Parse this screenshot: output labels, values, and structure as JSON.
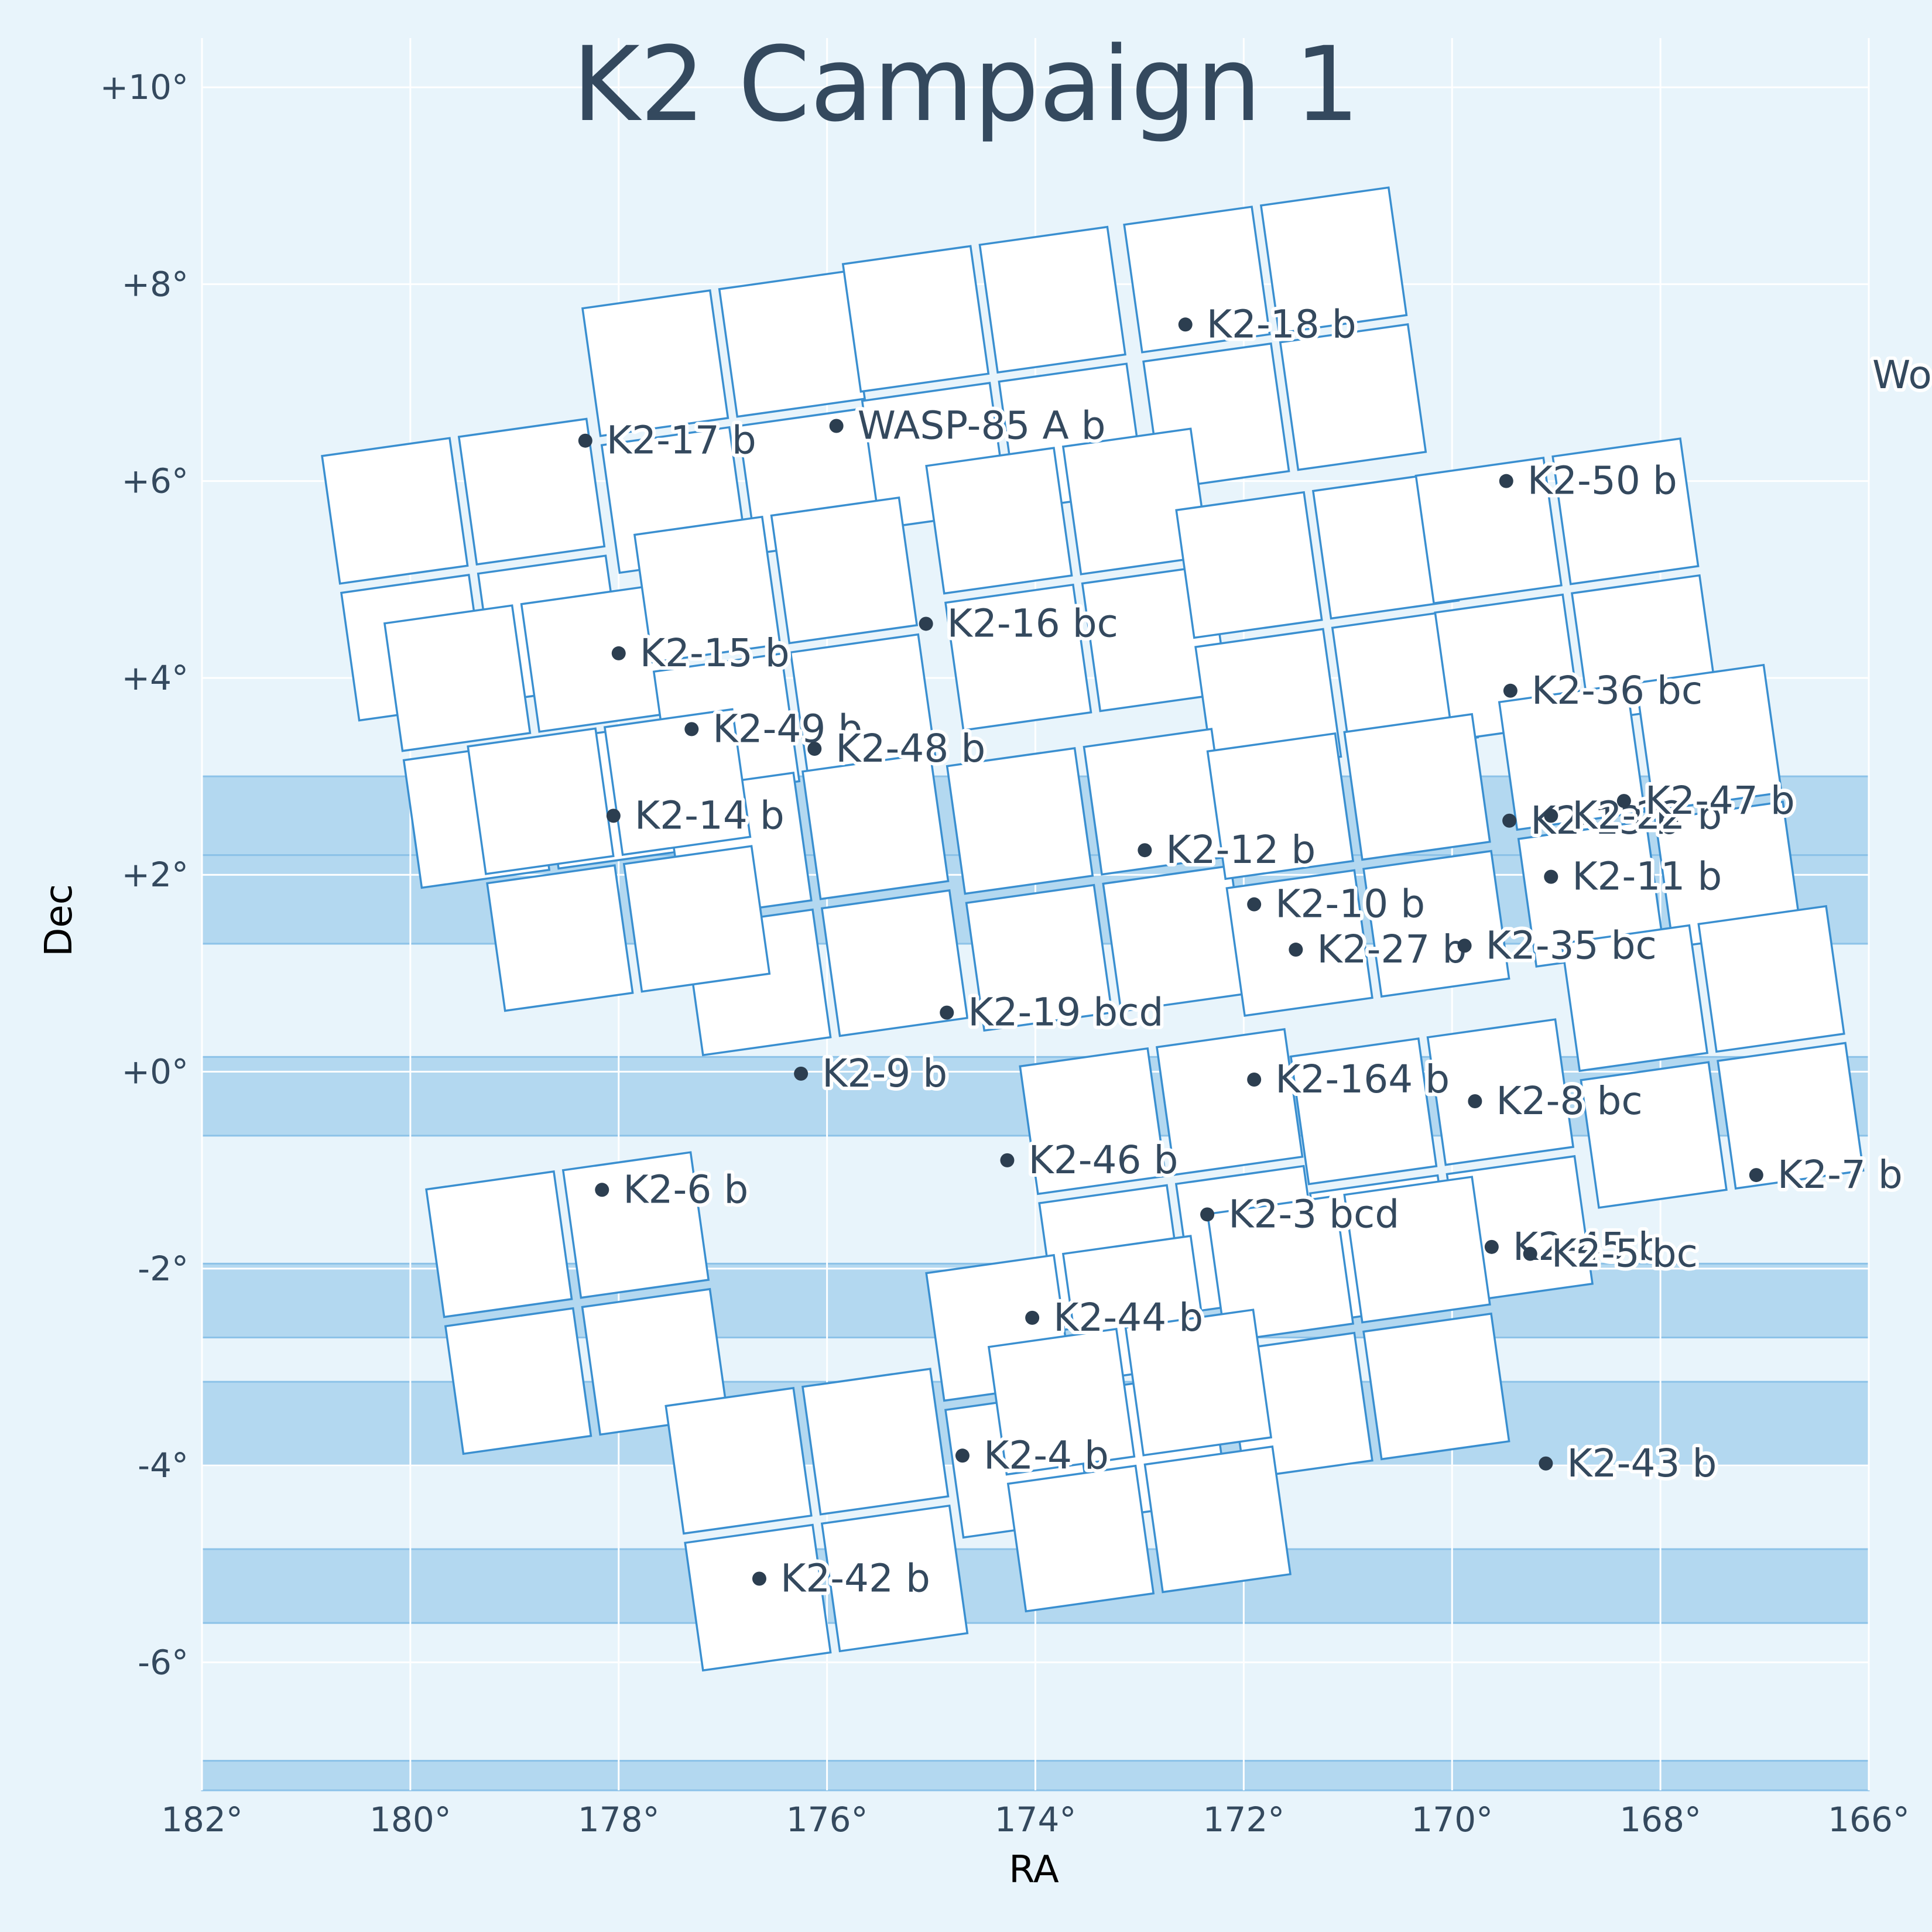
{
  "chart_data": {
    "type": "scatter",
    "title": "K2 Campaign 1",
    "xlabel": "RA",
    "ylabel": "Dec",
    "xlim": [
      182,
      166
    ],
    "ylim": [
      -7.3,
      10.5
    ],
    "grid": true,
    "x_ticks": [
      {
        "v": 182,
        "label": "182°"
      },
      {
        "v": 180,
        "label": "180°"
      },
      {
        "v": 178,
        "label": "178°"
      },
      {
        "v": 176,
        "label": "176°"
      },
      {
        "v": 174,
        "label": "174°"
      },
      {
        "v": 172,
        "label": "172°"
      },
      {
        "v": 170,
        "label": "170°"
      },
      {
        "v": 168,
        "label": "168°"
      },
      {
        "v": 166,
        "label": "166°"
      }
    ],
    "y_ticks": [
      {
        "v": 10,
        "label": "+10°"
      },
      {
        "v": 8,
        "label": "+8°"
      },
      {
        "v": 6,
        "label": "+6°"
      },
      {
        "v": 4,
        "label": "+4°"
      },
      {
        "v": 2,
        "label": "+2°"
      },
      {
        "v": 0,
        "label": "+0°"
      },
      {
        "v": -2,
        "label": "-2°"
      },
      {
        "v": -4,
        "label": "-4°"
      },
      {
        "v": -6,
        "label": "-6°"
      }
    ],
    "colors": {
      "background": "#e8f4fb",
      "band": "#b3d8f0",
      "ccd_fill": "#ffffff",
      "ccd_edge": "#3a8fd0",
      "text": "#34495e",
      "point": "#2c3e50"
    },
    "survey_bands_dec": [
      [
        2.2,
        3.0
      ],
      [
        1.3,
        2.2
      ],
      [
        -0.65,
        0.15
      ],
      [
        -2.7,
        -1.95
      ],
      [
        -4.0,
        -3.15
      ],
      [
        -5.6,
        -4.85
      ],
      [
        -7.3,
        -7.0
      ]
    ],
    "modules": [
      [
        179.4,
        5.1
      ],
      [
        176.9,
        6.6
      ],
      [
        174.4,
        7.05
      ],
      [
        171.7,
        7.45
      ],
      [
        178.8,
        3.4
      ],
      [
        176.4,
        4.3
      ],
      [
        173.6,
        5.0
      ],
      [
        171.2,
        4.55
      ],
      [
        168.9,
        4.9
      ],
      [
        176.1,
        1.7
      ],
      [
        173.4,
        1.95
      ],
      [
        170.9,
        2.1
      ],
      [
        168.1,
        2.6
      ],
      [
        178.0,
        2.15
      ],
      [
        167.5,
        0.15
      ],
      [
        172.7,
        -1.1
      ],
      [
        170.1,
        -1.0
      ],
      [
        178.4,
        -2.35
      ],
      [
        173.6,
        -3.2
      ],
      [
        170.9,
        -2.6
      ],
      [
        176.1,
        -4.55
      ],
      [
        173.0,
        -3.95
      ]
    ],
    "points": [
      {
        "name": "K2-18 b",
        "ra": 172.56,
        "dec": 7.59
      },
      {
        "name": "K2-17 b",
        "ra": 178.32,
        "dec": 6.41
      },
      {
        "name": "WASP-85 A b",
        "ra": 175.91,
        "dec": 6.56
      },
      {
        "name": "K2-50 b",
        "ra": 169.48,
        "dec": 6.0
      },
      {
        "name": "K2-16 bc",
        "ra": 175.05,
        "dec": 4.55
      },
      {
        "name": "K2-15 b",
        "ra": 178.0,
        "dec": 4.25
      },
      {
        "name": "K2-36 bc",
        "ra": 169.44,
        "dec": 3.87
      },
      {
        "name": "K2-49 b",
        "ra": 177.3,
        "dec": 3.48
      },
      {
        "name": "K2-48 b",
        "ra": 176.12,
        "dec": 3.28
      },
      {
        "name": "K2-14 b",
        "ra": 178.05,
        "dec": 2.6
      },
      {
        "name": "K2-13 b",
        "ra": 169.45,
        "dec": 2.55
      },
      {
        "name": "K2-22 b",
        "ra": 169.05,
        "dec": 2.6
      },
      {
        "name": "K2-47 b",
        "ra": 168.35,
        "dec": 2.75
      },
      {
        "name": "K2-12 b",
        "ra": 172.95,
        "dec": 2.25
      },
      {
        "name": "K2-11 b",
        "ra": 169.05,
        "dec": 1.98
      },
      {
        "name": "K2-10 b",
        "ra": 171.9,
        "dec": 1.7
      },
      {
        "name": "K2-27 b",
        "ra": 171.5,
        "dec": 1.24
      },
      {
        "name": "K2-35 bc",
        "ra": 169.88,
        "dec": 1.28
      },
      {
        "name": "K2-19 bcd",
        "ra": 174.85,
        "dec": 0.6
      },
      {
        "name": "K2-9 b",
        "ra": 176.25,
        "dec": -0.02
      },
      {
        "name": "K2-164 b",
        "ra": 171.9,
        "dec": -0.08
      },
      {
        "name": "K2-8 bc",
        "ra": 169.78,
        "dec": -0.3
      },
      {
        "name": "K2-46 b",
        "ra": 174.27,
        "dec": -0.9
      },
      {
        "name": "K2-7 b",
        "ra": 167.08,
        "dec": -1.05
      },
      {
        "name": "K2-6 b",
        "ra": 178.16,
        "dec": -1.2
      },
      {
        "name": "K2-3 bcd",
        "ra": 172.35,
        "dec": -1.45
      },
      {
        "name": "K2-45 b",
        "ra": 169.62,
        "dec": -1.78
      },
      {
        "name": "K2-5 bc",
        "ra": 169.25,
        "dec": -1.85
      },
      {
        "name": "K2-44 b",
        "ra": 174.03,
        "dec": -2.5
      },
      {
        "name": "K2-4 b",
        "ra": 174.7,
        "dec": -3.9
      },
      {
        "name": "K2-43 b",
        "ra": 169.1,
        "dec": -3.98
      },
      {
        "name": "K2-42 b",
        "ra": 176.65,
        "dec": -5.15
      }
    ],
    "offscreen_label": "Wo"
  }
}
